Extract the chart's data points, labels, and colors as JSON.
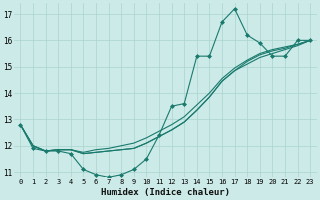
{
  "xlabel": "Humidex (Indice chaleur)",
  "bg_color": "#cceae7",
  "line_color": "#1a7a6e",
  "grid_color": "#aad4d0",
  "xlim": [
    -0.5,
    23.5
  ],
  "ylim": [
    10.8,
    17.4
  ],
  "yticks": [
    11,
    12,
    13,
    14,
    15,
    16,
    17
  ],
  "xticks": [
    0,
    1,
    2,
    3,
    4,
    5,
    6,
    7,
    8,
    9,
    10,
    11,
    12,
    13,
    14,
    15,
    16,
    17,
    18,
    19,
    20,
    21,
    22,
    23
  ],
  "series_jagged": [
    12.8,
    11.9,
    11.8,
    11.8,
    11.7,
    11.1,
    10.9,
    10.8,
    10.9,
    11.1,
    11.5,
    12.4,
    13.5,
    13.6,
    15.4,
    15.4,
    16.7,
    17.2,
    16.2,
    15.9,
    15.4,
    15.4,
    16.0,
    16.0
  ],
  "series_line1": [
    12.8,
    12.0,
    11.8,
    11.85,
    11.85,
    11.75,
    11.85,
    11.9,
    12.0,
    12.1,
    12.3,
    12.55,
    12.8,
    13.1,
    13.55,
    14.0,
    14.55,
    14.95,
    15.25,
    15.5,
    15.65,
    15.75,
    15.85,
    16.0
  ],
  "series_line2": [
    12.8,
    12.0,
    11.8,
    11.85,
    11.85,
    11.7,
    11.75,
    11.8,
    11.85,
    11.9,
    12.1,
    12.35,
    12.6,
    12.9,
    13.35,
    13.85,
    14.45,
    14.85,
    15.2,
    15.45,
    15.6,
    15.7,
    15.85,
    16.0
  ],
  "series_line3": [
    12.8,
    12.0,
    11.8,
    11.85,
    11.85,
    11.7,
    11.75,
    11.8,
    11.85,
    11.9,
    12.1,
    12.35,
    12.6,
    12.9,
    13.35,
    13.85,
    14.45,
    14.85,
    15.1,
    15.35,
    15.5,
    15.65,
    15.8,
    16.0
  ]
}
